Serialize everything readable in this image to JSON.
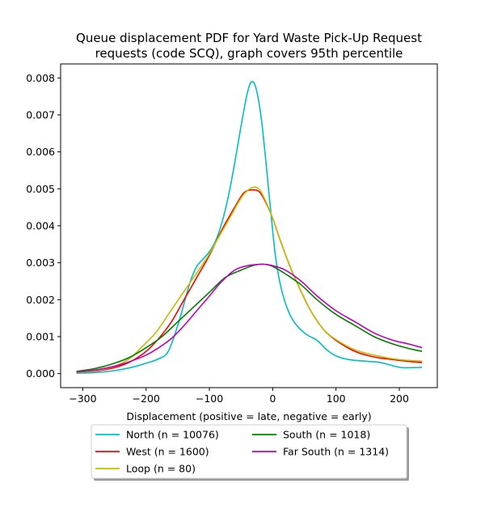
{
  "chart_data": {
    "type": "line",
    "title_lines": [
      "Queue displacement PDF for Yard Waste Pick-Up Request",
      "requests (code SCQ), graph covers 95th percentile"
    ],
    "xlabel": "Displacement (positive = late, negative = early)",
    "ylabel": "",
    "xlim": [
      -335,
      260
    ],
    "ylim": [
      -0.00038,
      0.00838
    ],
    "xticks": [
      {
        "value": -300,
        "label": "−300"
      },
      {
        "value": -200,
        "label": "−200"
      },
      {
        "value": -100,
        "label": "−100"
      },
      {
        "value": 0,
        "label": "0"
      },
      {
        "value": 100,
        "label": "100"
      },
      {
        "value": 200,
        "label": "200"
      }
    ],
    "yticks": [
      {
        "value": 0.0,
        "label": "0.000"
      },
      {
        "value": 0.001,
        "label": "0.001"
      },
      {
        "value": 0.002,
        "label": "0.002"
      },
      {
        "value": 0.003,
        "label": "0.003"
      },
      {
        "value": 0.004,
        "label": "0.004"
      },
      {
        "value": 0.005,
        "label": "0.005"
      },
      {
        "value": 0.006,
        "label": "0.006"
      },
      {
        "value": 0.007,
        "label": "0.007"
      },
      {
        "value": 0.008,
        "label": "0.008"
      }
    ],
    "grid": false,
    "legend_placement": "below-center, 2 columns",
    "series": [
      {
        "name": "North (n = 10076)",
        "color": "#00bfbf",
        "points": [
          [
            -310,
            1e-05
          ],
          [
            -280,
            3e-05
          ],
          [
            -250,
            8e-05
          ],
          [
            -220,
            0.00018
          ],
          [
            -200,
            0.00028
          ],
          [
            -180,
            0.0004
          ],
          [
            -165,
            0.0006
          ],
          [
            -150,
            0.0013
          ],
          [
            -140,
            0.0019
          ],
          [
            -130,
            0.0025
          ],
          [
            -120,
            0.0029
          ],
          [
            -110,
            0.0031
          ],
          [
            -100,
            0.0033
          ],
          [
            -90,
            0.0036
          ],
          [
            -80,
            0.0041
          ],
          [
            -70,
            0.0048
          ],
          [
            -60,
            0.0057
          ],
          [
            -50,
            0.0067
          ],
          [
            -40,
            0.0076
          ],
          [
            -33,
            0.0079
          ],
          [
            -26,
            0.0077
          ],
          [
            -18,
            0.0069
          ],
          [
            -10,
            0.0056
          ],
          [
            -2,
            0.0042
          ],
          [
            5,
            0.0031
          ],
          [
            15,
            0.0022
          ],
          [
            30,
            0.0015
          ],
          [
            50,
            0.0011
          ],
          [
            70,
            0.0009
          ],
          [
            85,
            0.00065
          ],
          [
            100,
            0.00048
          ],
          [
            120,
            0.00038
          ],
          [
            150,
            0.00033
          ],
          [
            170,
            0.0003
          ],
          [
            200,
            0.00017
          ],
          [
            220,
            0.00016
          ],
          [
            236,
            0.00017
          ]
        ]
      },
      {
        "name": "West (n = 1600)",
        "color": "#ff0000",
        "points": [
          [
            -310,
            3e-05
          ],
          [
            -280,
            7e-05
          ],
          [
            -250,
            0.00016
          ],
          [
            -225,
            0.00032
          ],
          [
            -200,
            0.0006
          ],
          [
            -180,
            0.00095
          ],
          [
            -160,
            0.0014
          ],
          [
            -140,
            0.002
          ],
          [
            -120,
            0.0026
          ],
          [
            -100,
            0.0032
          ],
          [
            -80,
            0.0039
          ],
          [
            -60,
            0.0045
          ],
          [
            -45,
            0.0049
          ],
          [
            -30,
            0.00497
          ],
          [
            -20,
            0.0049
          ],
          [
            -10,
            0.0046
          ],
          [
            0,
            0.0042
          ],
          [
            10,
            0.0037
          ],
          [
            25,
            0.003
          ],
          [
            40,
            0.0024
          ],
          [
            60,
            0.0017
          ],
          [
            80,
            0.0012
          ],
          [
            100,
            0.0009
          ],
          [
            130,
            0.0006
          ],
          [
            160,
            0.00045
          ],
          [
            190,
            0.00038
          ],
          [
            220,
            0.00032
          ],
          [
            236,
            0.0003
          ]
        ]
      },
      {
        "name": "Loop (n = 80)",
        "color": "#bfbf00",
        "points": [
          [
            -310,
            3e-05
          ],
          [
            -280,
            8e-05
          ],
          [
            -250,
            0.0002
          ],
          [
            -225,
            0.00042
          ],
          [
            -205,
            0.00075
          ],
          [
            -185,
            0.0011
          ],
          [
            -165,
            0.0016
          ],
          [
            -145,
            0.0021
          ],
          [
            -125,
            0.0026
          ],
          [
            -105,
            0.0031
          ],
          [
            -85,
            0.0037
          ],
          [
            -65,
            0.0043
          ],
          [
            -48,
            0.0048
          ],
          [
            -33,
            0.00503
          ],
          [
            -22,
            0.005
          ],
          [
            -12,
            0.0047
          ],
          [
            0,
            0.0042
          ],
          [
            10,
            0.0037
          ],
          [
            25,
            0.003
          ],
          [
            40,
            0.0024
          ],
          [
            60,
            0.0017
          ],
          [
            80,
            0.0012
          ],
          [
            100,
            0.00092
          ],
          [
            130,
            0.00064
          ],
          [
            160,
            0.0005
          ],
          [
            190,
            0.0004
          ],
          [
            220,
            0.00035
          ],
          [
            236,
            0.00034
          ]
        ]
      },
      {
        "name": "South (n = 1018)",
        "color": "#008000",
        "points": [
          [
            -310,
            6e-05
          ],
          [
            -280,
            0.00014
          ],
          [
            -250,
            0.00028
          ],
          [
            -225,
            0.00045
          ],
          [
            -200,
            0.0007
          ],
          [
            -175,
            0.001
          ],
          [
            -150,
            0.0014
          ],
          [
            -125,
            0.0018
          ],
          [
            -100,
            0.0022
          ],
          [
            -75,
            0.0026
          ],
          [
            -50,
            0.0028
          ],
          [
            -30,
            0.00293
          ],
          [
            -15,
            0.00296
          ],
          [
            0,
            0.0029
          ],
          [
            20,
            0.0027
          ],
          [
            45,
            0.0024
          ],
          [
            70,
            0.002
          ],
          [
            100,
            0.0016
          ],
          [
            130,
            0.0013
          ],
          [
            160,
            0.001
          ],
          [
            190,
            0.0008
          ],
          [
            215,
            0.00068
          ],
          [
            236,
            0.0006
          ]
        ]
      },
      {
        "name": "Far South (n = 1314)",
        "color": "#bf00bf",
        "points": [
          [
            -310,
            4e-05
          ],
          [
            -280,
            0.0001
          ],
          [
            -250,
            0.0002
          ],
          [
            -225,
            0.00033
          ],
          [
            -200,
            0.0005
          ],
          [
            -180,
            0.0007
          ],
          [
            -160,
            0.00095
          ],
          [
            -140,
            0.0013
          ],
          [
            -120,
            0.0017
          ],
          [
            -100,
            0.0021
          ],
          [
            -80,
            0.0025
          ],
          [
            -60,
            0.0028
          ],
          [
            -40,
            0.00292
          ],
          [
            -15,
            0.00296
          ],
          [
            0,
            0.00292
          ],
          [
            20,
            0.0028
          ],
          [
            45,
            0.0025
          ],
          [
            70,
            0.0021
          ],
          [
            100,
            0.0017
          ],
          [
            130,
            0.0014
          ],
          [
            160,
            0.0011
          ],
          [
            190,
            0.0009
          ],
          [
            215,
            0.0008
          ],
          [
            236,
            0.0007
          ]
        ]
      }
    ]
  }
}
